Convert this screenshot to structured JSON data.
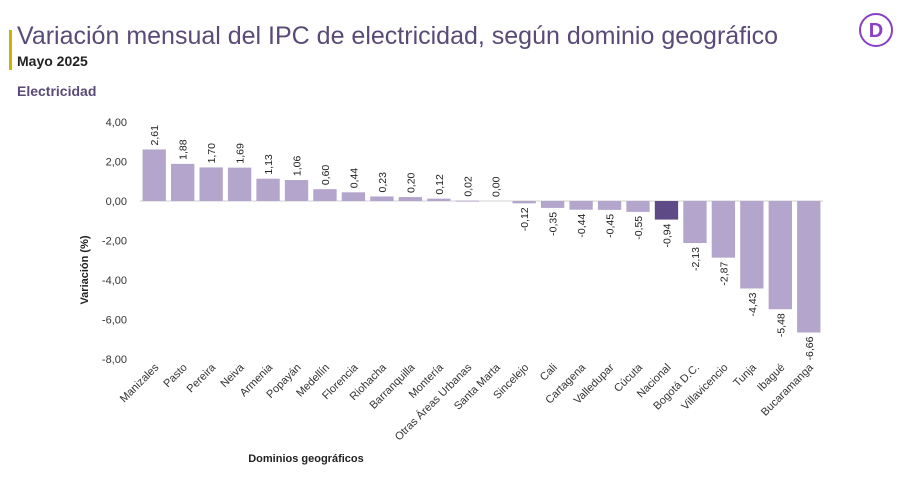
{
  "header": {
    "title": "Variación mensual del IPC de electricidad, según dominio geográfico",
    "subtitle": "Mayo 2025",
    "section": "Electricidad"
  },
  "logo": {
    "icon": "dane-logo-icon",
    "letter": "D",
    "color": "#8a3fc7"
  },
  "colors": {
    "bar": "#b4a5cc",
    "highlight": "#5e4a86",
    "title": "#5a4a78",
    "accent": "#c9b400"
  },
  "chart_data": {
    "type": "bar",
    "title": "Electricidad",
    "xlabel": "Dominios geográficos",
    "ylabel": "Variación (%)",
    "ylim": [
      -8,
      4
    ],
    "yticks": [
      "4,00",
      "2,00",
      "0,00",
      "-2,00",
      "-4,00",
      "-6,00",
      "-8,00"
    ],
    "ytick_values": [
      4,
      2,
      0,
      -2,
      -4,
      -6,
      -8
    ],
    "highlight": "Nacional",
    "categories": [
      "Manizales",
      "Pasto",
      "Pereira",
      "Neiva",
      "Armenia",
      "Popayán",
      "Medellín",
      "Florencia",
      "Riohacha",
      "Barranquilla",
      "Montería",
      "Otras Áreas Urbanas",
      "Santa Marta",
      "Sincelejo",
      "Cali",
      "Cartagena",
      "Valledupar",
      "Cúcuta",
      "Nacional",
      "Bogotá D.C.",
      "Villavicencio",
      "Tunja",
      "Ibagué",
      "Bucaramanga"
    ],
    "values": [
      2.61,
      1.88,
      1.7,
      1.69,
      1.13,
      1.06,
      0.6,
      0.44,
      0.23,
      0.2,
      0.12,
      0.02,
      0.0,
      -0.12,
      -0.35,
      -0.44,
      -0.45,
      -0.55,
      -0.94,
      -2.13,
      -2.87,
      -4.43,
      -5.48,
      -6.66
    ],
    "value_labels": [
      "2,61",
      "1,88",
      "1,70",
      "1,69",
      "1,13",
      "1,06",
      "0,60",
      "0,44",
      "0,23",
      "0,20",
      "0,12",
      "0,02",
      "0,00",
      "-0,12",
      "-0,35",
      "-0,44",
      "-0,45",
      "-0,55",
      "-0,94",
      "-2,13",
      "-2,87",
      "-4,43",
      "-5,48",
      "-6,66"
    ]
  }
}
